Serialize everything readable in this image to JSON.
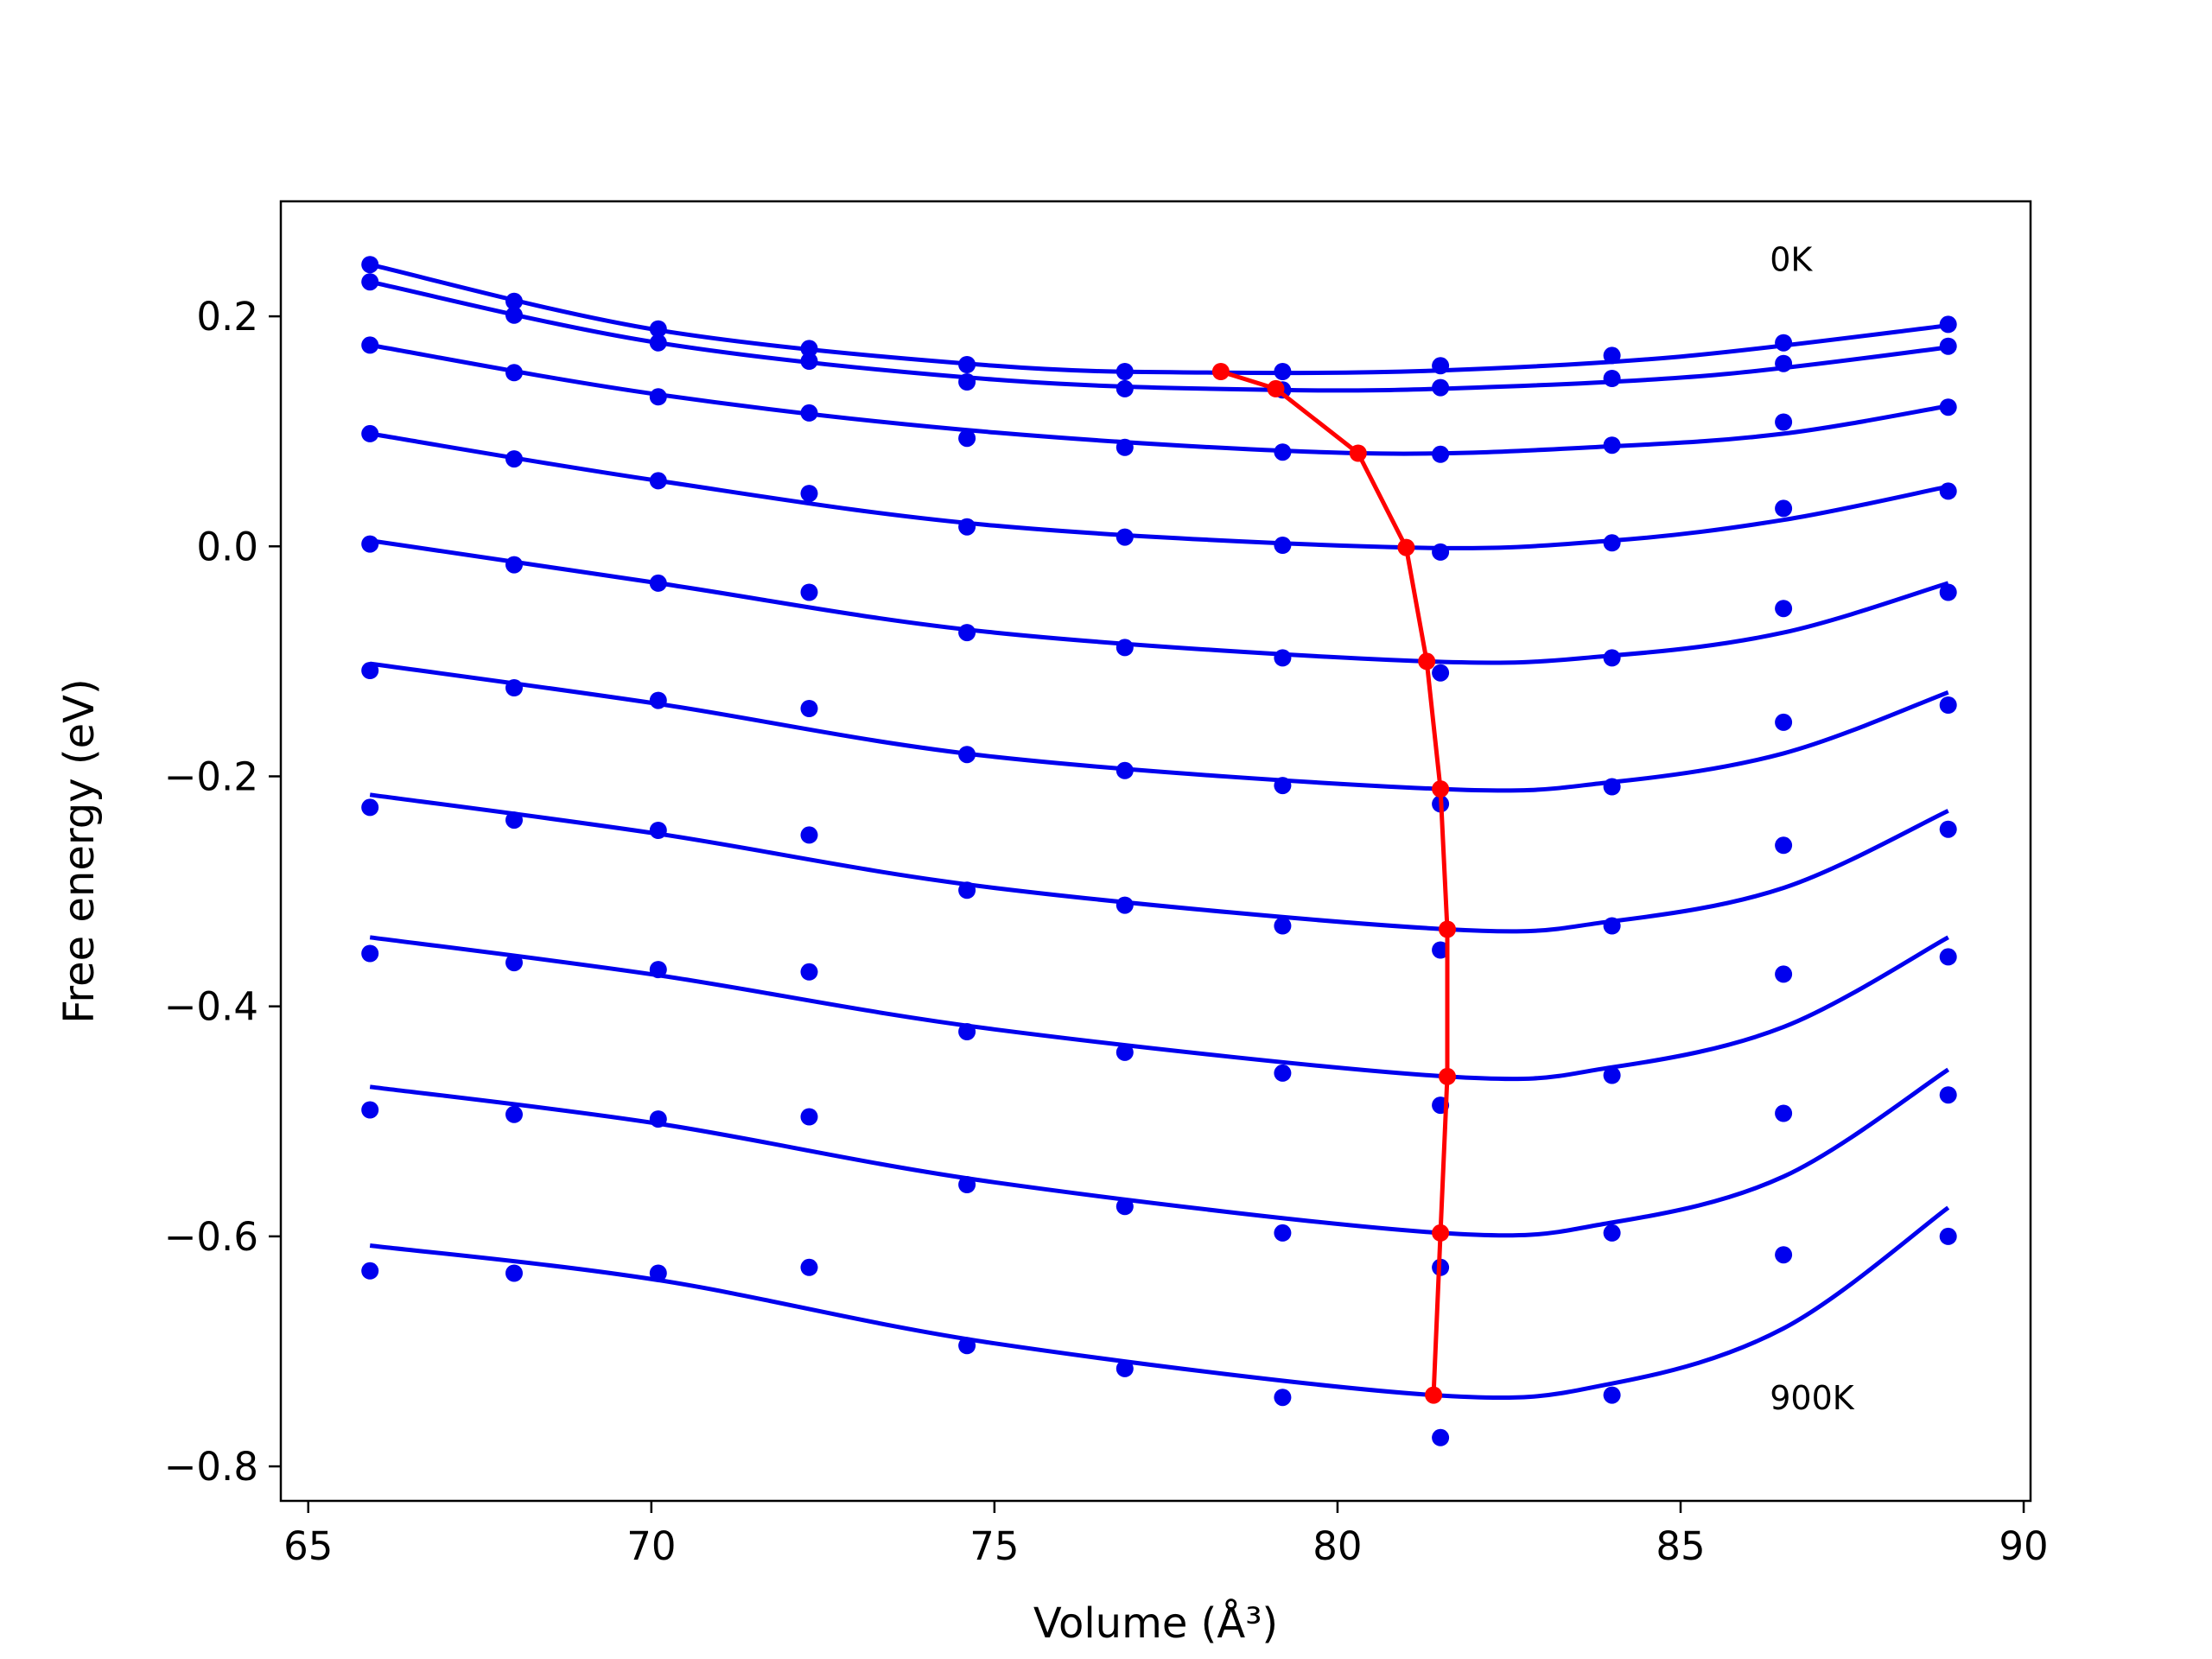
{
  "chart_data": {
    "type": "line",
    "xlabel": "Volume (Å³)",
    "ylabel": "Free energy (eV)",
    "xlim": [
      64.6,
      90.1
    ],
    "ylim": [
      -0.83,
      0.3
    ],
    "xticks": [
      65,
      70,
      75,
      80,
      85,
      90
    ],
    "xtick_labels": [
      "65",
      "70",
      "75",
      "80",
      "85",
      "90"
    ],
    "yticks": [
      -0.8,
      -0.6,
      -0.4,
      -0.2,
      0.0,
      0.2
    ],
    "ytick_labels": [
      "−0.8",
      "−0.6",
      "−0.4",
      "−0.2",
      "0.0",
      "0.2"
    ],
    "grid": false,
    "annotations": [
      {
        "text": "0K",
        "x": 86.3,
        "y": 0.25
      },
      {
        "text": "900K",
        "x": 86.3,
        "y": -0.74
      }
    ],
    "colors": {
      "fit": "#0000ee",
      "points": "#0000ee",
      "minimum": "#ff0000"
    },
    "volumes": [
      65.9,
      68.0,
      70.1,
      72.3,
      74.6,
      76.9,
      79.2,
      81.5,
      84.0,
      86.5,
      88.9
    ],
    "series": [
      {
        "points": [
          0.245,
          0.213,
          0.189,
          0.172,
          0.158,
          0.152,
          0.152,
          0.157,
          0.166,
          0.177,
          0.193
        ],
        "fit": [
          [
            65.9,
            0.245
          ],
          [
            70.1,
            0.188
          ],
          [
            75.0,
            0.157
          ],
          [
            78.3,
            0.151
          ],
          [
            81.5,
            0.153
          ],
          [
            85.0,
            0.165
          ],
          [
            88.9,
            0.192
          ]
        ]
      },
      {
        "points": [
          0.23,
          0.201,
          0.177,
          0.161,
          0.143,
          0.137,
          0.136,
          0.138,
          0.146,
          0.159,
          0.174
        ],
        "fit": [
          [
            65.9,
            0.23
          ],
          [
            70.1,
            0.177
          ],
          [
            75.0,
            0.145
          ],
          [
            79.1,
            0.136
          ],
          [
            82.0,
            0.138
          ],
          [
            85.5,
            0.149
          ],
          [
            88.9,
            0.173
          ]
        ]
      },
      {
        "points": [
          0.175,
          0.151,
          0.13,
          0.116,
          0.094,
          0.086,
          0.082,
          0.08,
          0.088,
          0.108,
          0.121
        ],
        "fit": [
          [
            65.9,
            0.175
          ],
          [
            70.1,
            0.132
          ],
          [
            75.0,
            0.099
          ],
          [
            80.3,
            0.081
          ],
          [
            84.0,
            0.087
          ],
          [
            86.5,
            0.098
          ],
          [
            88.9,
            0.122
          ]
        ]
      },
      {
        "points": [
          0.098,
          0.076,
          0.057,
          0.046,
          0.017,
          0.008,
          0.001,
          -0.005,
          0.003,
          0.033,
          0.048
        ],
        "fit": [
          [
            65.9,
            0.098
          ],
          [
            70.1,
            0.057
          ],
          [
            75.0,
            0.018
          ],
          [
            81.0,
            -0.001
          ],
          [
            84.0,
            0.005
          ],
          [
            86.5,
            0.023
          ],
          [
            88.9,
            0.052
          ]
        ]
      },
      {
        "points": [
          0.002,
          -0.016,
          -0.032,
          -0.04,
          -0.075,
          -0.088,
          -0.097,
          -0.11,
          -0.097,
          -0.054,
          -0.04
        ],
        "fit": [
          [
            65.9,
            0.005
          ],
          [
            70.1,
            -0.032
          ],
          [
            75.0,
            -0.075
          ],
          [
            81.3,
            -0.1
          ],
          [
            84.0,
            -0.095
          ],
          [
            86.5,
            -0.075
          ],
          [
            88.9,
            -0.032
          ]
        ]
      },
      {
        "points": [
          -0.108,
          -0.123,
          -0.134,
          -0.141,
          -0.181,
          -0.195,
          -0.208,
          -0.224,
          -0.209,
          -0.153,
          -0.138
        ],
        "fit": [
          [
            65.9,
            -0.102
          ],
          [
            70.1,
            -0.137
          ],
          [
            75.0,
            -0.183
          ],
          [
            81.5,
            -0.211
          ],
          [
            84.0,
            -0.205
          ],
          [
            86.5,
            -0.18
          ],
          [
            88.9,
            -0.127
          ]
        ]
      },
      {
        "points": [
          -0.227,
          -0.238,
          -0.247,
          -0.251,
          -0.299,
          -0.312,
          -0.33,
          -0.351,
          -0.33,
          -0.26,
          -0.246
        ],
        "fit": [
          [
            65.9,
            -0.216
          ],
          [
            70.1,
            -0.25
          ],
          [
            75.0,
            -0.297
          ],
          [
            81.6,
            -0.333
          ],
          [
            84.0,
            -0.326
          ],
          [
            86.5,
            -0.297
          ],
          [
            88.9,
            -0.23
          ]
        ]
      },
      {
        "points": [
          -0.354,
          -0.362,
          -0.368,
          -0.37,
          -0.422,
          -0.44,
          -0.458,
          -0.486,
          -0.46,
          -0.372,
          -0.357
        ],
        "fit": [
          [
            65.9,
            -0.34
          ],
          [
            70.1,
            -0.373
          ],
          [
            75.0,
            -0.42
          ],
          [
            81.6,
            -0.461
          ],
          [
            84.0,
            -0.453
          ],
          [
            86.5,
            -0.418
          ],
          [
            88.9,
            -0.34
          ]
        ]
      },
      {
        "points": [
          -0.49,
          -0.494,
          -0.498,
          -0.496,
          -0.555,
          -0.574,
          -0.597,
          -0.627,
          -0.597,
          -0.493,
          -0.477
        ],
        "fit": [
          [
            65.9,
            -0.47
          ],
          [
            70.1,
            -0.502
          ],
          [
            75.0,
            -0.553
          ],
          [
            81.5,
            -0.597
          ],
          [
            84.0,
            -0.588
          ],
          [
            86.5,
            -0.548
          ],
          [
            88.9,
            -0.455
          ]
        ]
      },
      {
        "points": [
          -0.63,
          -0.632,
          -0.632,
          -0.627,
          -0.695,
          -0.715,
          -0.74,
          -0.775,
          -0.738,
          -0.616,
          -0.6
        ],
        "fit": [
          [
            65.9,
            -0.608
          ],
          [
            70.1,
            -0.638
          ],
          [
            75.0,
            -0.693
          ],
          [
            81.4,
            -0.738
          ],
          [
            84.0,
            -0.728
          ],
          [
            86.5,
            -0.68
          ],
          [
            88.9,
            -0.575
          ]
        ]
      }
    ],
    "minimum_curve": [
      [
        78.3,
        0.152
      ],
      [
        79.1,
        0.137
      ],
      [
        80.3,
        0.081
      ],
      [
        81.0,
        -0.001
      ],
      [
        81.3,
        -0.1
      ],
      [
        81.5,
        -0.211
      ],
      [
        81.6,
        -0.333
      ],
      [
        81.6,
        -0.461
      ],
      [
        81.5,
        -0.597
      ],
      [
        81.4,
        -0.738
      ]
    ]
  }
}
